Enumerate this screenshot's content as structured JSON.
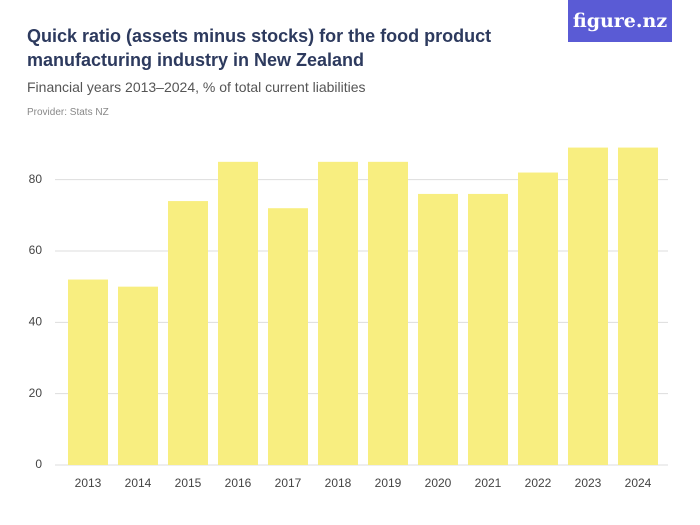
{
  "chart_data": {
    "type": "bar",
    "title": "Quick ratio (assets minus stocks) for the food product manufacturing industry in New Zealand",
    "subtitle": "Financial years 2013–2024, % of total current liabilities",
    "provider": "Provider: Stats NZ",
    "logo": "figure.nz",
    "categories": [
      "2013",
      "2014",
      "2015",
      "2016",
      "2017",
      "2018",
      "2019",
      "2020",
      "2021",
      "2022",
      "2023",
      "2024"
    ],
    "values": [
      52,
      50,
      74,
      85,
      72,
      85,
      85,
      76,
      76,
      82,
      89,
      89
    ],
    "color": "#f8ee80",
    "ylim": [
      0,
      90
    ],
    "yticks": [
      0,
      20,
      40,
      60,
      80
    ],
    "grid": true
  }
}
